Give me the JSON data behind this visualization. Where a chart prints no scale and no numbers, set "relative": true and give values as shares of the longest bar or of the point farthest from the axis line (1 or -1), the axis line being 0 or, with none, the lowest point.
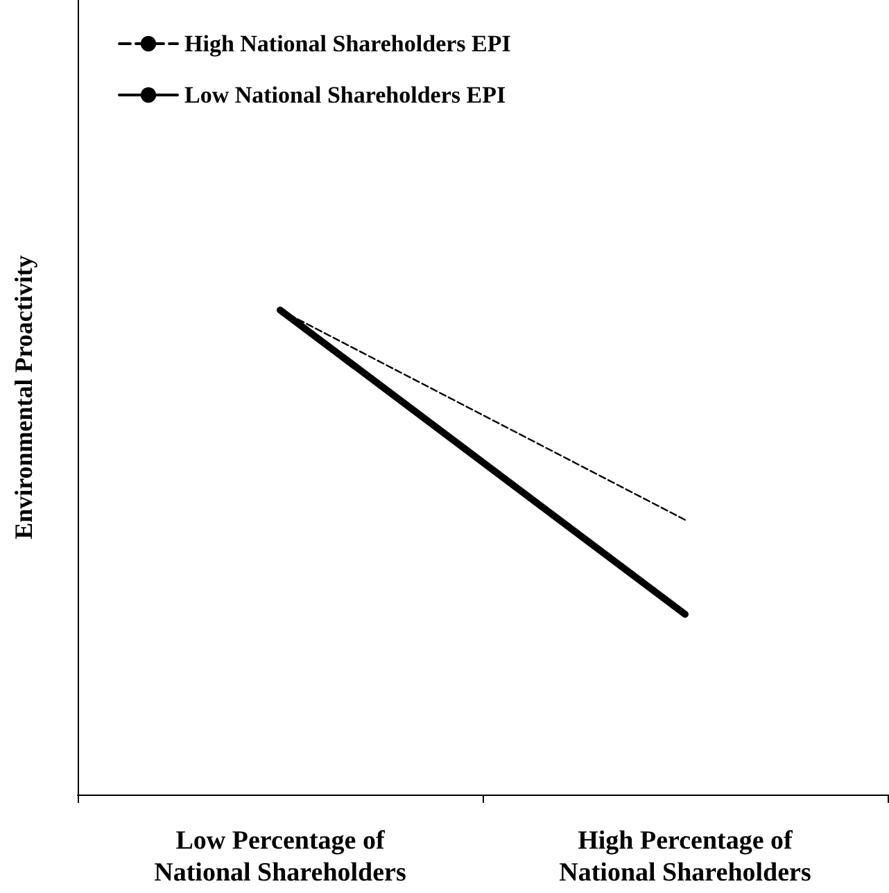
{
  "chart_data": {
    "type": "line",
    "relative": true,
    "ylabel": "Environmental Proactivity",
    "categories": [
      "Low Percentage of\nNational Shareholders",
      "High Percentage of\nNational Shareholders"
    ],
    "series": [
      {
        "name": "High National Shareholders EPI",
        "color": "#000000",
        "line_style": "dashed",
        "values": [
          1,
          0.567
        ]
      },
      {
        "name": "Low National Shareholders EPI",
        "color": "#000000",
        "line_style": "solid",
        "values": [
          1,
          0.372
        ]
      }
    ],
    "legend": "top left",
    "grid": false,
    "marker": "none"
  }
}
